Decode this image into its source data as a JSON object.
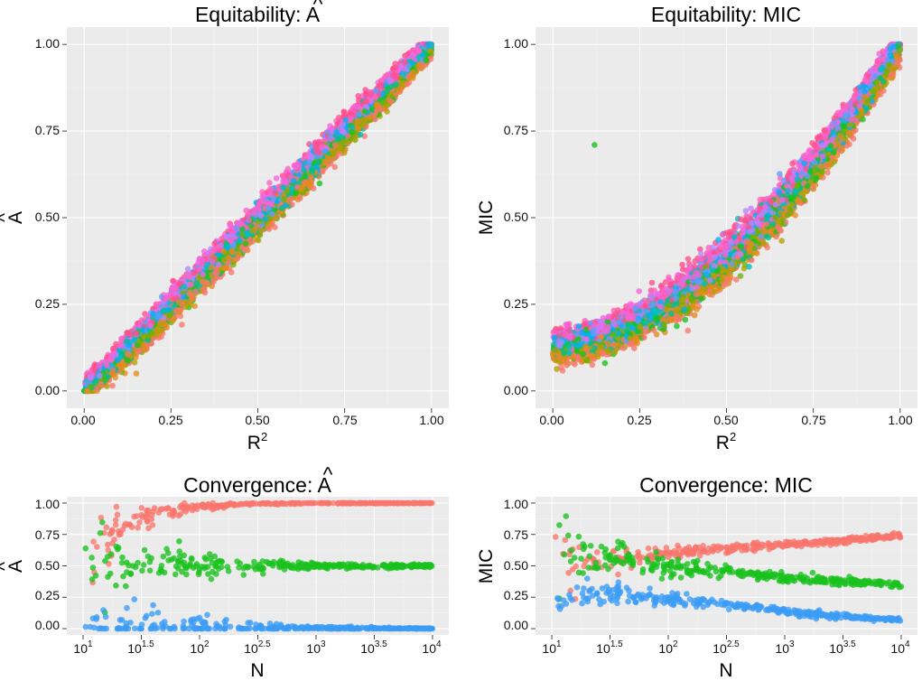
{
  "colors": {
    "panel_background": "#ebebeb",
    "grid_major": "#ffffff",
    "grid_minor": "#f4f4f4",
    "convergence_series": [
      "#f8766d",
      "#19c11d",
      "#3b9cf6"
    ],
    "equitability_palette": [
      "#f8766d",
      "#e48a1c",
      "#b4a000",
      "#6fb100",
      "#19c11d",
      "#00c08b",
      "#00bfc4",
      "#00b0f6",
      "#619cff",
      "#b983ff",
      "#f564e3",
      "#ff61c3",
      "#ff4f8a"
    ]
  },
  "chart_data": [
    {
      "id": "equitability-a",
      "type": "scatter",
      "title_text": "Equitability: ",
      "title_symbol": "A",
      "title_accent": "^",
      "xlabel_base": "R",
      "xlabel_sup": "2",
      "ylabel_symbol": "A",
      "ylabel_accent": "^",
      "xlim": [
        0,
        1
      ],
      "ylim": [
        0,
        1
      ],
      "x_ticks": [
        0,
        0.25,
        0.5,
        0.75,
        1.0
      ],
      "x_tick_labels": [
        "0.00",
        "0.25",
        "0.50",
        "0.75",
        "1.00"
      ],
      "y_ticks": [
        0,
        0.25,
        0.5,
        0.75,
        1.0
      ],
      "y_tick_labels": [
        "0.00",
        "0.25",
        "0.50",
        "0.75",
        "1.00"
      ],
      "band": {
        "n": 5200,
        "center": "y = 0.04*x + 0.96*x^1.02",
        "width": 0.04
      },
      "outliers": [
        {
          "x": 0.08,
          "y": 0.05
        },
        {
          "x": 0.15,
          "y": 0.05
        }
      ]
    },
    {
      "id": "equitability-mic",
      "type": "scatter",
      "title_text": "Equitability: MIC",
      "xlabel_base": "R",
      "xlabel_sup": "2",
      "ylabel": "MIC",
      "xlim": [
        0,
        1
      ],
      "ylim": [
        0,
        1
      ],
      "x_ticks": [
        0,
        0.25,
        0.5,
        0.75,
        1.0
      ],
      "x_tick_labels": [
        "0.00",
        "0.25",
        "0.50",
        "0.75",
        "1.00"
      ],
      "y_ticks": [
        0,
        0.25,
        0.5,
        0.75,
        1.0
      ],
      "y_tick_labels": [
        "0.00",
        "0.25",
        "0.50",
        "0.75",
        "1.00"
      ],
      "band": {
        "n": 5200,
        "center": "y = 0.13 + 0.87*x^1.8",
        "width": 0.05
      },
      "outliers": [
        {
          "x": 0.12,
          "y": 0.71
        },
        {
          "x": 0.15,
          "y": 0.08
        }
      ]
    },
    {
      "id": "convergence-a",
      "type": "scatter",
      "title_text": "Convergence: ",
      "title_symbol": "A",
      "title_accent": "^",
      "xlabel": "N",
      "ylabel_symbol": "A",
      "ylabel_accent": "^",
      "x_scale": "log10",
      "xlim": [
        10,
        10000
      ],
      "ylim": [
        0,
        1
      ],
      "x_ticks": [
        1,
        1.5,
        2,
        2.5,
        3,
        3.5,
        4
      ],
      "x_tick_labels": [
        {
          "base": "10",
          "exp": "1"
        },
        {
          "base": "10",
          "exp": "1.5"
        },
        {
          "base": "10",
          "exp": "2"
        },
        {
          "base": "10",
          "exp": "2.5"
        },
        {
          "base": "10",
          "exp": "3"
        },
        {
          "base": "10",
          "exp": "3.5"
        },
        {
          "base": "10",
          "exp": "4"
        }
      ],
      "y_ticks": [
        0,
        0.25,
        0.5,
        0.75,
        1.0
      ],
      "y_tick_labels": [
        "0.00",
        "0.25",
        "0.50",
        "0.75",
        "1.00"
      ],
      "series": [
        {
          "name": "series-1",
          "n": 320,
          "curve": [
            [
              1,
              0.5
            ],
            [
              1.5,
              0.88
            ],
            [
              2,
              0.97
            ],
            [
              2.5,
              0.995
            ],
            [
              3,
              1.0
            ],
            [
              4,
              1.0
            ]
          ],
          "noise": [
            [
              1,
              0.18
            ],
            [
              1.5,
              0.05
            ],
            [
              2,
              0.015
            ],
            [
              2.5,
              0.004
            ],
            [
              4,
              0.001
            ]
          ]
        },
        {
          "name": "series-2",
          "n": 320,
          "curve": [
            [
              1,
              0.5
            ],
            [
              4,
              0.5
            ]
          ],
          "noise": [
            [
              1,
              0.2
            ],
            [
              1.5,
              0.09
            ],
            [
              2,
              0.05
            ],
            [
              2.5,
              0.025
            ],
            [
              3,
              0.012
            ],
            [
              4,
              0.005
            ]
          ]
        },
        {
          "name": "series-3",
          "n": 320,
          "curve": [
            [
              1,
              0.03
            ],
            [
              1.5,
              0.02
            ],
            [
              2,
              0.01
            ],
            [
              2.5,
              0.004
            ],
            [
              4,
              0.0
            ]
          ],
          "noise": [
            [
              1,
              0.13
            ],
            [
              1.5,
              0.09
            ],
            [
              2,
              0.05
            ],
            [
              2.5,
              0.02
            ],
            [
              3,
              0.008
            ],
            [
              4,
              0.002
            ]
          ]
        }
      ]
    },
    {
      "id": "convergence-mic",
      "type": "scatter",
      "title_text": "Convergence: MIC",
      "xlabel": "N",
      "ylabel": "MIC",
      "x_scale": "log10",
      "xlim": [
        10,
        10000
      ],
      "ylim": [
        0,
        1
      ],
      "x_ticks": [
        1,
        1.5,
        2,
        2.5,
        3,
        3.5,
        4
      ],
      "x_tick_labels": [
        {
          "base": "10",
          "exp": "1"
        },
        {
          "base": "10",
          "exp": "1.5"
        },
        {
          "base": "10",
          "exp": "2"
        },
        {
          "base": "10",
          "exp": "2.5"
        },
        {
          "base": "10",
          "exp": "3"
        },
        {
          "base": "10",
          "exp": "3.5"
        },
        {
          "base": "10",
          "exp": "4"
        }
      ],
      "y_ticks": [
        0,
        0.25,
        0.5,
        0.75,
        1.0
      ],
      "y_tick_labels": [
        "0.00",
        "0.25",
        "0.50",
        "0.75",
        "1.00"
      ],
      "series": [
        {
          "name": "series-1",
          "n": 320,
          "curve": [
            [
              1,
              0.47
            ],
            [
              1.5,
              0.55
            ],
            [
              2,
              0.6
            ],
            [
              2.5,
              0.64
            ],
            [
              3,
              0.67
            ],
            [
              3.5,
              0.7
            ],
            [
              4,
              0.74
            ]
          ],
          "noise": [
            [
              1,
              0.15
            ],
            [
              1.5,
              0.06
            ],
            [
              2,
              0.025
            ],
            [
              2.5,
              0.015
            ],
            [
              4,
              0.01
            ]
          ]
        },
        {
          "name": "series-2",
          "n": 320,
          "curve": [
            [
              1,
              0.62
            ],
            [
              1.5,
              0.56
            ],
            [
              2,
              0.5
            ],
            [
              2.5,
              0.45
            ],
            [
              3,
              0.41
            ],
            [
              3.5,
              0.38
            ],
            [
              4,
              0.35
            ]
          ],
          "noise": [
            [
              1,
              0.18
            ],
            [
              1.5,
              0.07
            ],
            [
              2,
              0.035
            ],
            [
              2.5,
              0.02
            ],
            [
              4,
              0.012
            ]
          ]
        },
        {
          "name": "series-3",
          "n": 320,
          "curve": [
            [
              1,
              0.2
            ],
            [
              1.3,
              0.26
            ],
            [
              1.5,
              0.3
            ],
            [
              2,
              0.24
            ],
            [
              2.5,
              0.19
            ],
            [
              3,
              0.14
            ],
            [
              3.5,
              0.1
            ],
            [
              4,
              0.07
            ]
          ],
          "noise": [
            [
              1,
              0.07
            ],
            [
              1.5,
              0.045
            ],
            [
              2,
              0.03
            ],
            [
              2.5,
              0.018
            ],
            [
              4,
              0.006
            ]
          ]
        }
      ]
    }
  ]
}
